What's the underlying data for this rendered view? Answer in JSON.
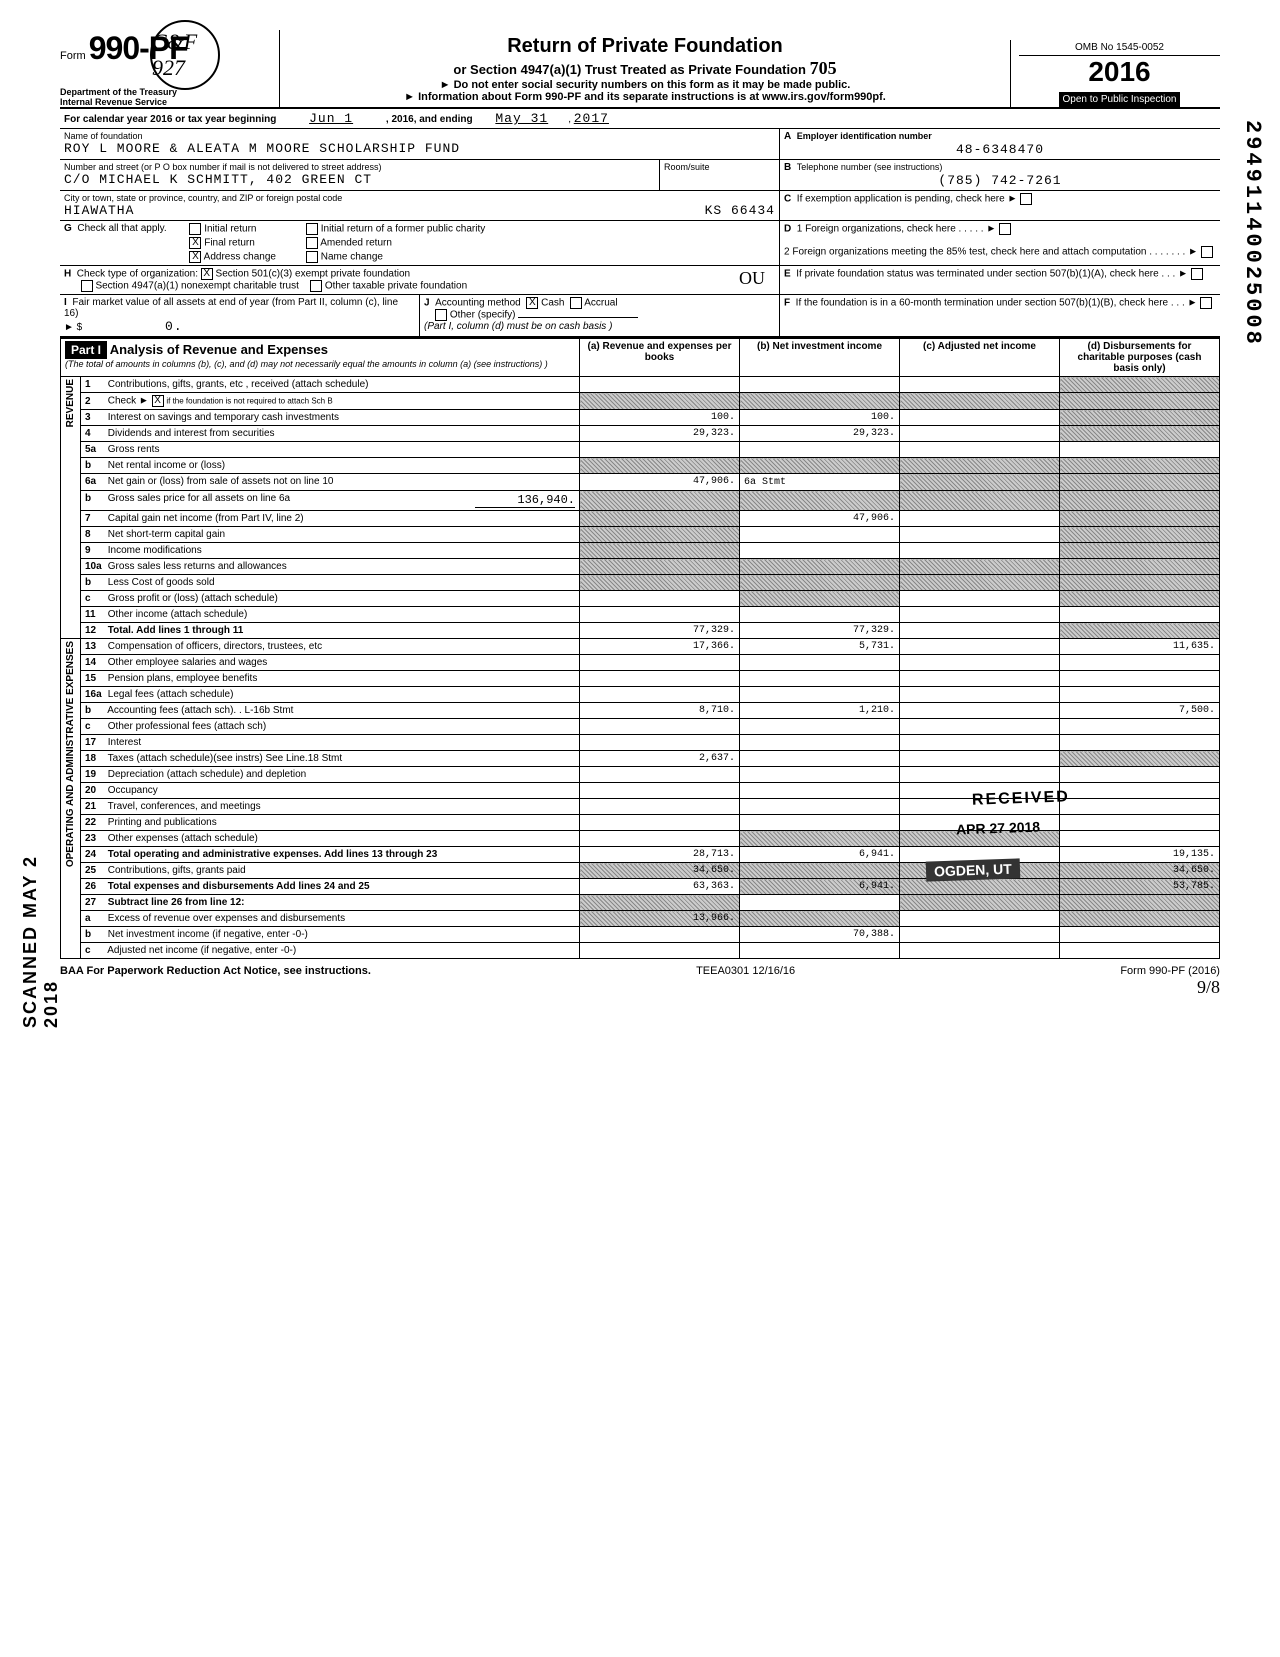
{
  "form": {
    "number_prefix": "Form",
    "number": "990-PF",
    "dept": "Department of the Treasury\nInternal Revenue Service",
    "title": "Return of Private Foundation",
    "subtitle": "or Section 4947(a)(1) Trust Treated as Private Foundation",
    "note1": "► Do not enter social security numbers on this form as it may be made public.",
    "note2": "► Information about Form 990-PF and its separate instructions is at www.irs.gov/form990pf.",
    "omb": "OMB No 1545-0052",
    "year": "2016",
    "inspection": "Open to Public Inspection",
    "handwritten_705": "705"
  },
  "circ_initials": "C&F 927",
  "period": {
    "label": "For calendar year 2016 or tax year beginning",
    "begin": "Jun 1",
    "mid": ", 2016, and ending",
    "end_m": "May 31",
    "end_y": "2017"
  },
  "header": {
    "name_label": "Name of foundation",
    "name": "ROY L MOORE & ALEATA M MOORE SCHOLARSHIP FUND",
    "addr_label": "Number and street (or P O box number if mail is not delivered to street address)",
    "addr": "C/O MICHAEL K SCHMITT, 402 GREEN CT",
    "room_label": "Room/suite",
    "city_label": "City or town, state or province, country, and ZIP or foreign postal code",
    "city": "HIAWATHA",
    "state_zip": "KS  66434",
    "A_label": "Employer identification number",
    "A_val": "48-6348470",
    "B_label": "Telephone number (see instructions)",
    "B_val": "(785) 742-7261",
    "C_label": "If exemption application is pending, check here ►",
    "D1_label": "1 Foreign organizations, check here . . . . . ►",
    "D2_label": "2 Foreign organizations meeting the 85% test, check here and attach computation . . . . . . . ►",
    "E_label": "If private foundation status was terminated under section 507(b)(1)(A), check here . . . ►",
    "F_label": "If the foundation is in a 60-month termination under section 507(b)(1)(B), check here . . . ►"
  },
  "G": {
    "label": "Check all that apply.",
    "items": [
      "Initial return",
      "Final return",
      "Address change",
      "Initial return of a former public charity",
      "Amended return",
      "Name change"
    ],
    "checked": {
      "Final return": true,
      "Address change": true
    }
  },
  "H": {
    "label": "Check type of organization:",
    "opts": [
      "Section 501(c)(3) exempt private foundation",
      "Section 4947(a)(1) nonexempt charitable trust",
      "Other taxable private foundation"
    ],
    "checked": 0,
    "hw_ou": "OU"
  },
  "I": {
    "label": "Fair market value of all assets at end of year (from Part II, column (c), line 16)",
    "prefix": "► $",
    "val": "0."
  },
  "J": {
    "label": "Accounting method",
    "opts": [
      "Cash",
      "Accrual",
      "Other (specify)"
    ],
    "checked": 0,
    "note": "(Part I, column (d) must be on cash basis )"
  },
  "part1": {
    "header": "Part I",
    "title": "Analysis of Revenue and Expenses",
    "note": "(The total of amounts in columns (b), (c), and (d) may not necessarily equal the amounts in column (a) (see instructions) )",
    "cols": [
      "(a) Revenue and expenses per books",
      "(b) Net investment income",
      "(c) Adjusted net income",
      "(d) Disbursements for charitable purposes (cash basis only)"
    ],
    "side_rev": "REVENUE",
    "side_exp_top": "OPERATING",
    "side_exp_mid": "ADMINISTRATIVE",
    "side_exp_r": "AND",
    "side_exp_bot": "EXPENSES"
  },
  "rows": [
    {
      "n": "1",
      "label": "Contributions, gifts, grants, etc , received (attach schedule)"
    },
    {
      "n": "2",
      "label": "Check ►",
      "extra": "if the foundation is not required to attach Sch B",
      "check": true
    },
    {
      "n": "3",
      "label": "Interest on savings and temporary cash investments",
      "a": "100.",
      "b": "100."
    },
    {
      "n": "4",
      "label": "Dividends and interest from securities",
      "a": "29,323.",
      "b": "29,323."
    },
    {
      "n": "5a",
      "label": "Gross rents"
    },
    {
      "n": "b",
      "label": "Net rental income or (loss)"
    },
    {
      "n": "6a",
      "label": "Net gain or (loss) from sale of assets not on line 10",
      "a": "47,906.",
      "b_note": "6a Stmt"
    },
    {
      "n": "b",
      "label": "Gross sales price for all assets on line 6a",
      "inset": "136,940."
    },
    {
      "n": "7",
      "label": "Capital gain net income (from Part IV, line 2)",
      "b": "47,906."
    },
    {
      "n": "8",
      "label": "Net short-term capital gain"
    },
    {
      "n": "9",
      "label": "Income modifications"
    },
    {
      "n": "10a",
      "label": "Gross sales less returns and allowances"
    },
    {
      "n": "b",
      "label": "Less Cost of goods sold"
    },
    {
      "n": "c",
      "label": "Gross profit or (loss) (attach schedule)"
    },
    {
      "n": "11",
      "label": "Other income (attach schedule)"
    },
    {
      "n": "12",
      "label": "Total. Add lines 1 through 11",
      "a": "77,329.",
      "b": "77,329.",
      "bold": true
    },
    {
      "n": "13",
      "label": "Compensation of officers, directors, trustees, etc",
      "a": "17,366.",
      "b": "5,731.",
      "d": "11,635."
    },
    {
      "n": "14",
      "label": "Other employee salaries and wages"
    },
    {
      "n": "15",
      "label": "Pension plans, employee benefits"
    },
    {
      "n": "16a",
      "label": "Legal fees (attach schedule)"
    },
    {
      "n": "b",
      "label": "Accounting fees (attach sch). . L-16b Stmt",
      "a": "8,710.",
      "b": "1,210.",
      "d": "7,500."
    },
    {
      "n": "c",
      "label": "Other professional fees (attach sch)"
    },
    {
      "n": "17",
      "label": "Interest"
    },
    {
      "n": "18",
      "label": "Taxes (attach schedule)(see instrs)  See Line.18 Stmt",
      "a": "2,637."
    },
    {
      "n": "19",
      "label": "Depreciation (attach schedule) and depletion"
    },
    {
      "n": "20",
      "label": "Occupancy"
    },
    {
      "n": "21",
      "label": "Travel, conferences, and meetings"
    },
    {
      "n": "22",
      "label": "Printing and publications"
    },
    {
      "n": "23",
      "label": "Other expenses (attach schedule)"
    },
    {
      "n": "24",
      "label": "Total operating and administrative expenses. Add lines 13 through 23",
      "a": "28,713.",
      "b": "6,941.",
      "d": "19,135.",
      "bold": true
    },
    {
      "n": "25",
      "label": "Contributions, gifts, grants paid",
      "a": "34,650.",
      "d": "34,650."
    },
    {
      "n": "26",
      "label": "Total expenses and disbursements Add lines 24 and 25",
      "a": "63,363.",
      "b": "6,941.",
      "d": "53,785.",
      "bold": true
    },
    {
      "n": "27",
      "label": "Subtract line 26 from line 12:",
      "bold": true
    },
    {
      "n": "a",
      "label": "Excess of revenue over expenses and disbursements",
      "a": "13,966."
    },
    {
      "n": "b",
      "label": "Net investment income (if negative, enter -0-)",
      "b": "70,388."
    },
    {
      "n": "c",
      "label": "Adjusted net income (if negative, enter -0-)"
    }
  ],
  "shaded_cells": {
    "1": [
      "b",
      "c",
      "d"
    ],
    "2": [
      "a",
      "b",
      "c",
      "d"
    ],
    "5a": [
      "d"
    ],
    "b_rental": [
      "a",
      "b",
      "c",
      "d"
    ],
    "6a": [
      "c",
      "d"
    ],
    "6b": [
      "a",
      "b",
      "c",
      "d"
    ],
    "7": [
      "a",
      "d"
    ],
    "8": [
      "a",
      "d"
    ],
    "9": [
      "a",
      "d"
    ],
    "10a": [
      "a",
      "b",
      "c",
      "d"
    ],
    "10b": [
      "a",
      "b",
      "c",
      "d"
    ],
    "10c": [
      "b",
      "d"
    ],
    "12": [
      "d"
    ],
    "19": [
      "d"
    ],
    "25": [
      "b",
      "c"
    ],
    "27": [
      "a",
      "b",
      "c",
      "d"
    ],
    "27a": [
      "b",
      "c",
      "d"
    ],
    "27b": [
      "a",
      "c",
      "d"
    ],
    "27c": [
      "a",
      "b",
      "d"
    ]
  },
  "footer": {
    "left": "BAA  For Paperwork Reduction Act Notice, see instructions.",
    "mid": "TEEA0301  12/16/16",
    "right": "Form 990-PF (2016)",
    "page": "9/8"
  },
  "stamps": {
    "scanned": "SCANNED MAY 2 2018",
    "received": "RECEIVED",
    "date": "APR 27 2018",
    "loc": "OGDEN, UT",
    "side_number": "29491140025008"
  }
}
